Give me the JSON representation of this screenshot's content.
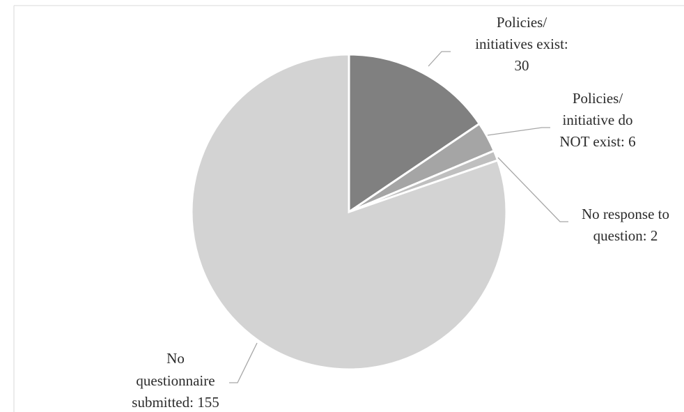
{
  "chart_data": {
    "type": "pie",
    "title": "",
    "start_angle_deg": 0,
    "direction": "clockwise",
    "slices": [
      {
        "label_lines": [
          "Policies/",
          "initiatives exist:",
          "30"
        ],
        "value": 30,
        "color": "#808080"
      },
      {
        "label_lines": [
          "Policies/",
          "initiative do",
          "NOT exist: 6"
        ],
        "value": 6,
        "color": "#a5a5a5"
      },
      {
        "label_lines": [
          "No response to",
          "question: 2"
        ],
        "value": 2,
        "color": "#bfbfbf"
      },
      {
        "label_lines": [
          "No",
          "questionnaire",
          "submitted: 155"
        ],
        "value": 155,
        "color": "#d3d3d3"
      }
    ]
  }
}
